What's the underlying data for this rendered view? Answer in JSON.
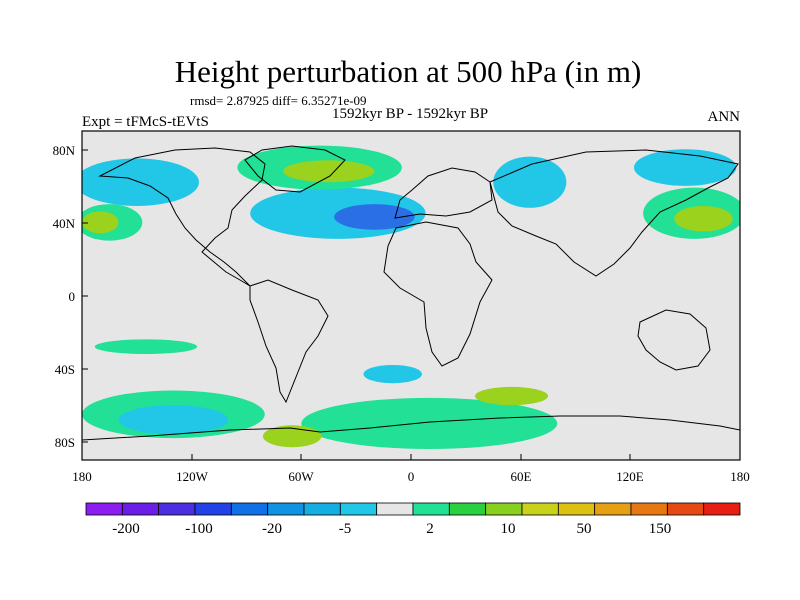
{
  "chart_data": {
    "type": "contour-map",
    "title": "Height perturbation at 500 hPa (in m)",
    "stats": "rmsd= 2.87925 diff= 6.35271e-09",
    "left_label": "Expt = tFMcS-tEVtS",
    "center_label": "1592kyr BP - 1592kyr BP",
    "right_label": "ANN",
    "x_ticks": [
      "180",
      "120W",
      "60W",
      "0",
      "60E",
      "120E",
      "180"
    ],
    "y_ticks": [
      "80N",
      "40N",
      "0",
      "40S",
      "80S"
    ],
    "xlim": [
      -180,
      180
    ],
    "ylim": [
      -90,
      90
    ],
    "colorbar_labels": [
      "-200",
      "-100",
      "-20",
      "-5",
      "2",
      "10",
      "50",
      "150"
    ],
    "colorbar_colors": [
      "#8c1ef0",
      "#6a1ee6",
      "#4b2fe0",
      "#2241e6",
      "#1070e6",
      "#1093e0",
      "#15aee0",
      "#22c6e6",
      "#e6e6e6",
      "#22e096",
      "#2ad040",
      "#88d020",
      "#c8d21a",
      "#dcc014",
      "#e6a014",
      "#e67814",
      "#e64a14",
      "#e61e14"
    ],
    "regions": [
      {
        "value_class": "-5",
        "lon": -150,
        "lat": 62,
        "rx": 34,
        "ry": 13
      },
      {
        "value_class": "-5",
        "lon": -40,
        "lat": 45,
        "rx": 48,
        "ry": 14
      },
      {
        "value_class": "-20",
        "lon": -20,
        "lat": 43,
        "rx": 22,
        "ry": 7
      },
      {
        "value_class": "-5",
        "lon": 65,
        "lat": 62,
        "rx": 20,
        "ry": 14
      },
      {
        "value_class": "-5",
        "lon": 150,
        "lat": 70,
        "rx": 28,
        "ry": 10
      },
      {
        "value_class": "2",
        "lon": -50,
        "lat": 70,
        "rx": 45,
        "ry": 12
      },
      {
        "value_class": "10",
        "lon": -45,
        "lat": 68,
        "rx": 25,
        "ry": 6
      },
      {
        "value_class": "2",
        "lon": -165,
        "lat": 40,
        "rx": 18,
        "ry": 10
      },
      {
        "value_class": "10",
        "lon": -170,
        "lat": 40,
        "rx": 10,
        "ry": 6
      },
      {
        "value_class": "2",
        "lon": 155,
        "lat": 45,
        "rx": 28,
        "ry": 14
      },
      {
        "value_class": "10",
        "lon": 160,
        "lat": 42,
        "rx": 16,
        "ry": 7
      },
      {
        "value_class": "2",
        "lon": -145,
        "lat": -28,
        "rx": 28,
        "ry": 4
      },
      {
        "value_class": "-5",
        "lon": -10,
        "lat": -43,
        "rx": 16,
        "ry": 5
      },
      {
        "value_class": "2",
        "lon": -130,
        "lat": -65,
        "rx": 50,
        "ry": 13
      },
      {
        "value_class": "-5",
        "lon": -130,
        "lat": -68,
        "rx": 30,
        "ry": 8
      },
      {
        "value_class": "2",
        "lon": 10,
        "lat": -70,
        "rx": 70,
        "ry": 14
      },
      {
        "value_class": "10",
        "lon": 55,
        "lat": -55,
        "rx": 20,
        "ry": 5
      },
      {
        "value_class": "10",
        "lon": -65,
        "lat": -77,
        "rx": 16,
        "ry": 6
      }
    ]
  }
}
